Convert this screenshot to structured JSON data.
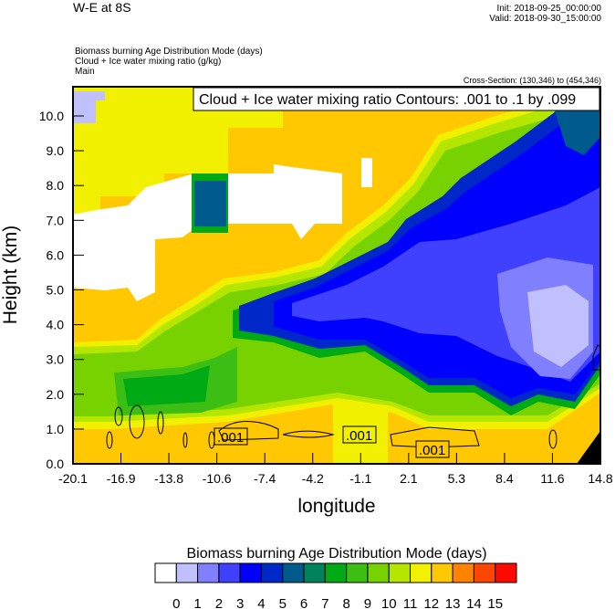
{
  "header": {
    "title": "W-E at 8S",
    "init": "Init: 2018-09-25_00:00:00",
    "valid": "Valid: 2018-09-30_15:00:00",
    "fields": [
      "Biomass burning Age Distribution Mode   (days)",
      "Cloud + Ice water mixing ratio   (g/kg)",
      "Main"
    ],
    "cross_section": "Cross-Section: (130,346) to (454,346)"
  },
  "chart_data": {
    "type": "heatmap",
    "title": "W-E at 8S",
    "xlabel": "longitude",
    "ylabel": "Height (km)",
    "xlim": [
      -20.1,
      14.8
    ],
    "ylim": [
      0.0,
      10.84
    ],
    "x_ticks": [
      "-20.1",
      "-16.9",
      "-13.8",
      "-10.6",
      "-7.4",
      "-4.2",
      "-1.1",
      "2.1",
      "5.3",
      "8.4",
      "11.6",
      "14.8"
    ],
    "y_ticks": [
      "0.0",
      "1.0",
      "2.0",
      "3.0",
      "4.0",
      "5.0",
      "6.0",
      "7.0",
      "8.0",
      "9.0",
      "10.0"
    ],
    "y_tick_values": [
      0,
      1,
      2,
      3,
      4,
      5,
      6,
      7,
      8,
      9,
      10
    ],
    "contour_info": "Cloud + Ice water mixing ratio Contours: .001 to .1 by .099",
    "contour_labels": [
      ".001",
      ".001",
      ".001"
    ],
    "colorbar": {
      "title": "Biomass burning Age Distribution Mode  (days)",
      "labels": [
        "0",
        "1",
        "2",
        "3",
        "4",
        "5",
        "6",
        "7",
        "8",
        "9",
        "10",
        "11",
        "12",
        "13",
        "14",
        "15"
      ],
      "colors": [
        "#ffffff",
        "#c0c0ff",
        "#8080ff",
        "#4040ff",
        "#0000ff",
        "#0028c8",
        "#005a8c",
        "#00825a",
        "#00aa14",
        "#3cbe14",
        "#78d200",
        "#b4e600",
        "#f0f000",
        "#ffc800",
        "#ff8200",
        "#ff4600",
        "#ff0a00"
      ]
    }
  }
}
